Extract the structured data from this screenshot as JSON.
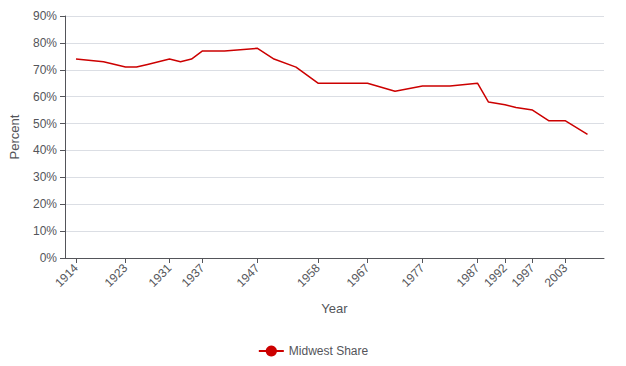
{
  "chart_data": {
    "type": "line",
    "x": [
      1914,
      1919,
      1923,
      1925,
      1927,
      1929,
      1931,
      1933,
      1935,
      1937,
      1939,
      1941,
      1947,
      1950,
      1954,
      1958,
      1962,
      1967,
      1972,
      1977,
      1982,
      1987,
      1989,
      1992,
      1994,
      1997,
      2000,
      2003,
      2007
    ],
    "series": [
      {
        "name": "Midwest Share",
        "color": "#CC0000",
        "values": [
          0.74,
          0.73,
          0.71,
          0.71,
          0.72,
          0.73,
          0.74,
          0.73,
          0.74,
          0.77,
          0.77,
          0.77,
          0.78,
          0.74,
          0.71,
          0.65,
          0.65,
          0.65,
          0.62,
          0.64,
          0.64,
          0.65,
          0.58,
          0.57,
          0.56,
          0.55,
          0.51,
          0.51,
          0.46
        ]
      }
    ],
    "xlabel": "Year",
    "ylabel": "Percent",
    "xlim": [
      1912,
      2010
    ],
    "xticks": [
      1914,
      1923,
      1931,
      1937,
      1947,
      1958,
      1967,
      1977,
      1987,
      1992,
      1997,
      2003
    ],
    "ylim": [
      0.0,
      0.9
    ],
    "yticks": [
      {
        "value": 0.0,
        "label": "0%"
      },
      {
        "value": 0.1,
        "label": "10%"
      },
      {
        "value": 0.2,
        "label": "20%"
      },
      {
        "value": 0.3,
        "label": "30%"
      },
      {
        "value": 0.4,
        "label": "40%"
      },
      {
        "value": 0.5,
        "label": "50%"
      },
      {
        "value": 0.6,
        "label": "60%"
      },
      {
        "value": 0.7,
        "label": "70%"
      },
      {
        "value": 0.8,
        "label": "80%"
      },
      {
        "value": 0.9,
        "label": "90%"
      }
    ],
    "grid": true,
    "legend": "bottom"
  }
}
